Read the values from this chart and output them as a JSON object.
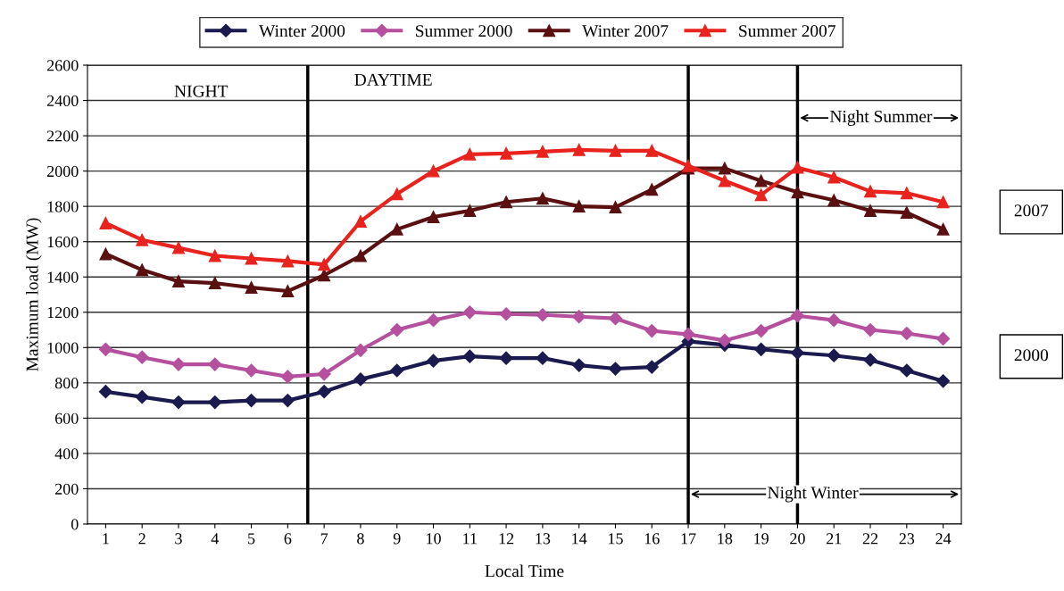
{
  "chart_data": {
    "type": "line",
    "xlabel": "Local Time",
    "ylabel": "Maximum load (MW)",
    "x": [
      1,
      2,
      3,
      4,
      5,
      6,
      7,
      8,
      9,
      10,
      11,
      12,
      13,
      14,
      15,
      16,
      17,
      18,
      19,
      20,
      21,
      22,
      23,
      24
    ],
    "xlim": [
      0.5,
      24.5
    ],
    "xticks": [
      1,
      2,
      3,
      4,
      5,
      6,
      7,
      8,
      9,
      10,
      11,
      12,
      13,
      14,
      15,
      16,
      17,
      18,
      19,
      20,
      21,
      22,
      23,
      24
    ],
    "ylim": [
      0,
      2600
    ],
    "yticks": [
      0,
      200,
      400,
      600,
      800,
      1000,
      1200,
      1400,
      1600,
      1800,
      2000,
      2200,
      2400,
      2600
    ],
    "grid": "y",
    "legend": "top",
    "series": [
      {
        "name": "Winter 2000",
        "color": "#1a1a4e",
        "marker": "diamond",
        "values": [
          750,
          720,
          690,
          690,
          700,
          700,
          750,
          820,
          870,
          925,
          950,
          940,
          940,
          900,
          880,
          890,
          1035,
          1015,
          990,
          970,
          955,
          930,
          870,
          810
        ]
      },
      {
        "name": "Summer 2000",
        "color": "#b5509e",
        "marker": "diamond",
        "values": [
          990,
          945,
          905,
          905,
          870,
          835,
          850,
          985,
          1100,
          1155,
          1200,
          1190,
          1185,
          1175,
          1165,
          1095,
          1075,
          1040,
          1095,
          1180,
          1155,
          1100,
          1080,
          1050
        ]
      },
      {
        "name": "Winter 2007",
        "color": "#5a1010",
        "marker": "triangle",
        "values": [
          1530,
          1440,
          1375,
          1365,
          1340,
          1320,
          1410,
          1520,
          1670,
          1740,
          1775,
          1825,
          1845,
          1800,
          1795,
          1895,
          2015,
          2015,
          1945,
          1880,
          1835,
          1775,
          1765,
          1670
        ]
      },
      {
        "name": "Summer 2007",
        "color": "#e8231e",
        "marker": "triangle",
        "values": [
          1705,
          1610,
          1565,
          1520,
          1505,
          1490,
          1470,
          1715,
          1870,
          2000,
          2095,
          2100,
          2110,
          2120,
          2115,
          2115,
          2030,
          1945,
          1865,
          2020,
          1965,
          1885,
          1875,
          1825
        ]
      }
    ],
    "ref_lines": [
      {
        "axis": "x",
        "value": 6.55,
        "color": "#000000"
      },
      {
        "axis": "x",
        "value": 17,
        "color": "#000000"
      },
      {
        "axis": "x",
        "value": 20,
        "color": "#000000"
      }
    ],
    "annotations": [
      "NIGHT",
      "DAYTIME",
      "Night Summer",
      "Night Winter",
      "2007",
      "2000"
    ]
  }
}
